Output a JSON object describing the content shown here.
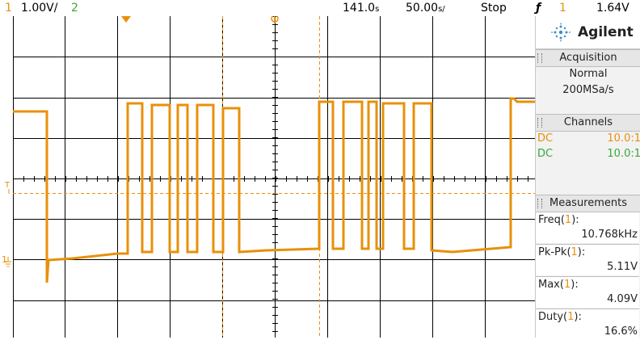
{
  "top": {
    "ch1_num": "1",
    "ch1_scale": "1.00V/",
    "ch2_num": "2",
    "time_pos": "141.0",
    "time_pos_unit": "s",
    "time_scale": "50.00",
    "time_scale_unit": "s/",
    "run_state": "Stop",
    "trig_icon": "ƒ",
    "trig_ch": "1",
    "trig_level": "1.64V"
  },
  "panel": {
    "brand": "Agilent",
    "acquisition": {
      "title": "Acquisition",
      "mode": "Normal",
      "rate": "200MSa/s"
    },
    "channels": {
      "title": "Channels",
      "rows": [
        {
          "coupling": "DC",
          "probe": "10.0:1"
        },
        {
          "coupling": "DC",
          "probe": "10.0:1"
        }
      ]
    },
    "measurements": {
      "title": "Measurements",
      "items": [
        {
          "name": "Freq",
          "ch": "1",
          "value": "10.768kHz"
        },
        {
          "name": "Pk-Pk",
          "ch": "1",
          "value": "5.11V"
        },
        {
          "name": "Max",
          "ch": "1",
          "value": "4.09V"
        },
        {
          "name": "Duty",
          "ch": "1",
          "value": "16.6%"
        }
      ]
    }
  },
  "markers": {
    "ground_label": "1",
    "trigger_label": "T"
  },
  "colors": {
    "ch1": "#e8900a",
    "ch2": "#3aa63a",
    "grid": "#000000",
    "screen_bg": "#ffffff"
  }
}
